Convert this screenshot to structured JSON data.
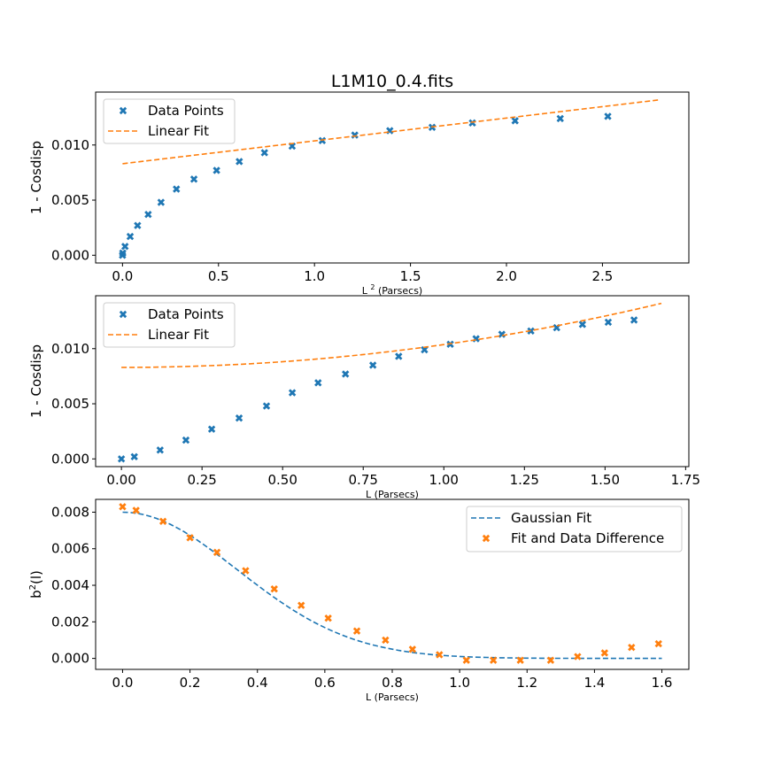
{
  "figure_title": "L1M10_0.4.fits",
  "colors": {
    "blue": "#1f77b4",
    "orange": "#ff7f0e"
  },
  "chart_data": [
    {
      "type": "scatter",
      "xlabel_main": "L",
      "xlabel_sup": "2",
      "xlabel_rest": "(Parsecs)",
      "ylabel": "1 - Cosdisp",
      "xlim": [
        -0.14,
        2.95
      ],
      "ylim": [
        -0.0007,
        0.0148
      ],
      "xticks": [
        0.0,
        0.5,
        1.0,
        1.5,
        2.0,
        2.5
      ],
      "xtick_labels": [
        "0.0",
        "0.5",
        "1.0",
        "1.5",
        "2.0",
        "2.5"
      ],
      "yticks": [
        0.0,
        0.005,
        0.01
      ],
      "ytick_labels": [
        "0.000",
        "0.005",
        "0.010"
      ],
      "legend": [
        {
          "label": "Data Points",
          "kind": "marker",
          "color": "#1f77b4"
        },
        {
          "label": "Linear Fit",
          "kind": "dashed",
          "color": "#ff7f0e"
        }
      ],
      "series": [
        {
          "name": "Data Points",
          "style": "x-marker",
          "color": "#1f77b4",
          "x": [
            0.0,
            0.0014,
            0.0131,
            0.04,
            0.0784,
            0.1336,
            0.2007,
            0.2809,
            0.3721,
            0.49,
            0.6084,
            0.7396,
            0.8836,
            1.0404,
            1.21,
            1.3924,
            1.6129,
            1.8225,
            2.0449,
            2.2801,
            2.5281
          ],
          "y": [
            0.0,
            0.0002,
            0.0008,
            0.0017,
            0.0027,
            0.0037,
            0.0048,
            0.006,
            0.0069,
            0.0077,
            0.0085,
            0.0093,
            0.0099,
            0.0104,
            0.0109,
            0.0113,
            0.0116,
            0.012,
            0.0122,
            0.0124,
            0.0126
          ]
        },
        {
          "name": "Linear Fit",
          "style": "dashed-line",
          "color": "#ff7f0e",
          "x": [
            0.0,
            2.8
          ],
          "y": [
            0.0083,
            0.0141
          ]
        }
      ]
    },
    {
      "type": "scatter",
      "xlabel": "L (Parsecs)",
      "ylabel": "1 - Cosdisp",
      "xlim": [
        -0.08,
        1.76
      ],
      "ylim": [
        -0.0007,
        0.0148
      ],
      "xticks": [
        0.0,
        0.25,
        0.5,
        0.75,
        1.0,
        1.25,
        1.5,
        1.75
      ],
      "xtick_labels": [
        "0.00",
        "0.25",
        "0.50",
        "0.75",
        "1.00",
        "1.25",
        "1.50",
        "1.75"
      ],
      "yticks": [
        0.0,
        0.005,
        0.01
      ],
      "ytick_labels": [
        "0.000",
        "0.005",
        "0.010"
      ],
      "legend": [
        {
          "label": "Data Points",
          "kind": "marker",
          "color": "#1f77b4"
        },
        {
          "label": "Linear Fit",
          "kind": "dashed",
          "color": "#ff7f0e"
        }
      ],
      "series": [
        {
          "name": "Data Points",
          "style": "x-marker",
          "color": "#1f77b4",
          "x": [
            0.0,
            0.04,
            0.12,
            0.2,
            0.28,
            0.365,
            0.45,
            0.53,
            0.61,
            0.695,
            0.78,
            0.86,
            0.94,
            1.02,
            1.1,
            1.18,
            1.27,
            1.35,
            1.43,
            1.51,
            1.59
          ],
          "y": [
            0.0,
            0.0002,
            0.0008,
            0.0017,
            0.0027,
            0.0037,
            0.0048,
            0.006,
            0.0069,
            0.0077,
            0.0085,
            0.0093,
            0.0099,
            0.0104,
            0.0109,
            0.0113,
            0.0116,
            0.0119,
            0.0122,
            0.0124,
            0.0126
          ]
        },
        {
          "name": "Linear Fit",
          "style": "dashed-curve",
          "color": "#ff7f0e",
          "curve": {
            "form": "a + b*x^2",
            "a": 0.0083,
            "b": 0.00207,
            "x_range": [
              0.0,
              1.675
            ]
          }
        }
      ]
    },
    {
      "type": "scatter",
      "xlabel": "L (Parsecs)",
      "ylabel_main": "b",
      "ylabel_sup": "2",
      "ylabel_rest": "(l)",
      "xlim": [
        -0.08,
        1.68
      ],
      "ylim": [
        -0.0006,
        0.0087
      ],
      "xticks": [
        0.0,
        0.2,
        0.4,
        0.6,
        0.8,
        1.0,
        1.2,
        1.4,
        1.6
      ],
      "xtick_labels": [
        "0.0",
        "0.2",
        "0.4",
        "0.6",
        "0.8",
        "1.0",
        "1.2",
        "1.4",
        "1.6"
      ],
      "yticks": [
        0.0,
        0.002,
        0.004,
        0.006,
        0.008
      ],
      "ytick_labels": [
        "0.000",
        "0.002",
        "0.004",
        "0.006",
        "0.008"
      ],
      "legend": [
        {
          "label": "Gaussian Fit",
          "kind": "dashed",
          "color": "#1f77b4"
        },
        {
          "label": "Fit and Data Difference",
          "kind": "marker",
          "color": "#ff7f0e"
        }
      ],
      "series": [
        {
          "name": "Gaussian Fit",
          "style": "dashed-curve",
          "color": "#1f77b4",
          "curve": {
            "form": "A*exp(-x^2/(2*s^2))",
            "A": 0.008,
            "s": 0.34,
            "x_range": [
              0.0,
              1.6
            ]
          }
        },
        {
          "name": "Fit and Data Difference",
          "style": "x-marker",
          "color": "#ff7f0e",
          "x": [
            0.0,
            0.04,
            0.12,
            0.2,
            0.28,
            0.365,
            0.45,
            0.53,
            0.61,
            0.695,
            0.78,
            0.86,
            0.94,
            1.02,
            1.1,
            1.18,
            1.27,
            1.35,
            1.43,
            1.51,
            1.59
          ],
          "y": [
            0.0083,
            0.0081,
            0.0075,
            0.0066,
            0.0058,
            0.0048,
            0.0038,
            0.0029,
            0.0022,
            0.0015,
            0.001,
            0.0005,
            0.0002,
            -0.0001,
            -0.0001,
            -0.0001,
            -0.0001,
            0.0001,
            0.0003,
            0.0006,
            0.0008
          ]
        }
      ]
    }
  ]
}
